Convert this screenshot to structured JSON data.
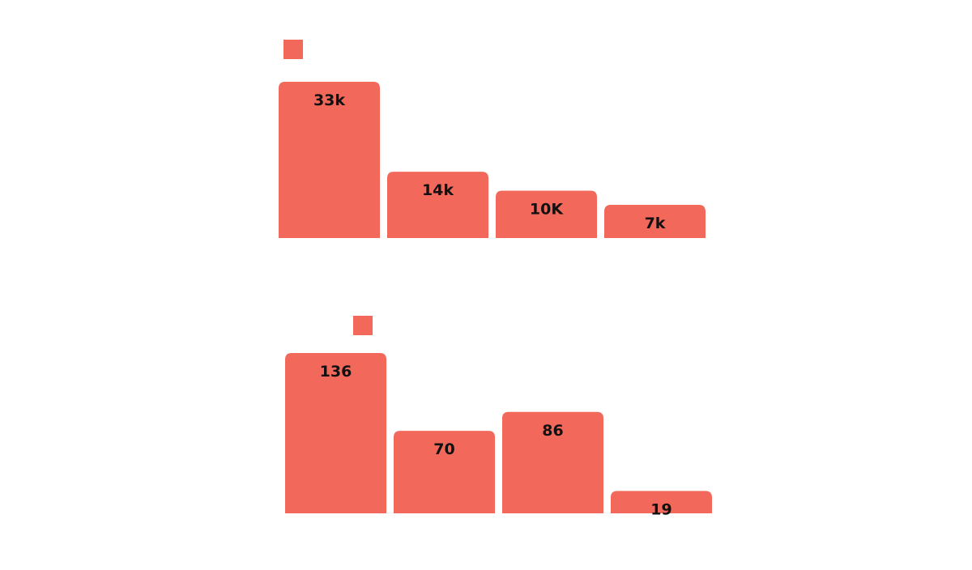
{
  "colors": {
    "bar": "#f2685b",
    "label": "#111111",
    "background": "#ffffff"
  },
  "chart_data": [
    {
      "type": "bar",
      "series": [
        {
          "values": [
            33000,
            14000,
            10000,
            7000
          ],
          "labels": [
            "33k",
            "14k",
            "10K",
            "7k"
          ]
        }
      ],
      "legend": "top-left",
      "grid": false
    },
    {
      "type": "bar",
      "series": [
        {
          "values": [
            136,
            70,
            86,
            19
          ],
          "labels": [
            "136",
            "70",
            "86",
            "19"
          ]
        }
      ],
      "legend": "top-left",
      "grid": false
    }
  ]
}
